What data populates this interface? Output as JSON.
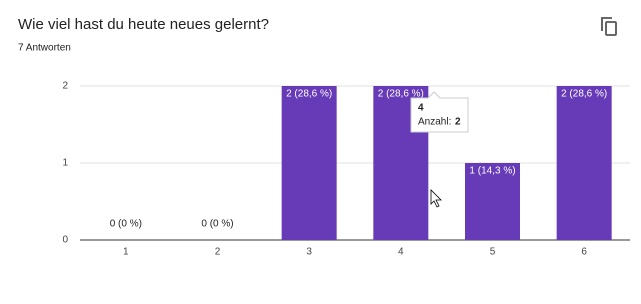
{
  "chart_data": {
    "type": "bar",
    "title": "Wie viel hast du heute neues gelernt?",
    "subtitle": "7 Antworten",
    "categories": [
      "1",
      "2",
      "3",
      "4",
      "5",
      "6"
    ],
    "values": [
      0,
      0,
      2,
      2,
      1,
      2
    ],
    "value_labels": [
      "0 (0 %)",
      "0 (0 %)",
      "2 (28,6 %)",
      "2 (28,6 %)",
      "1 (14,3 %)",
      "2 (28,6 %)"
    ],
    "color": "#673ab7",
    "ylim": [
      0,
      2
    ],
    "yticks": [
      0,
      1,
      2
    ],
    "grid": true,
    "tooltip": {
      "title": "4",
      "label": "Anzahl:",
      "value": 2
    }
  }
}
